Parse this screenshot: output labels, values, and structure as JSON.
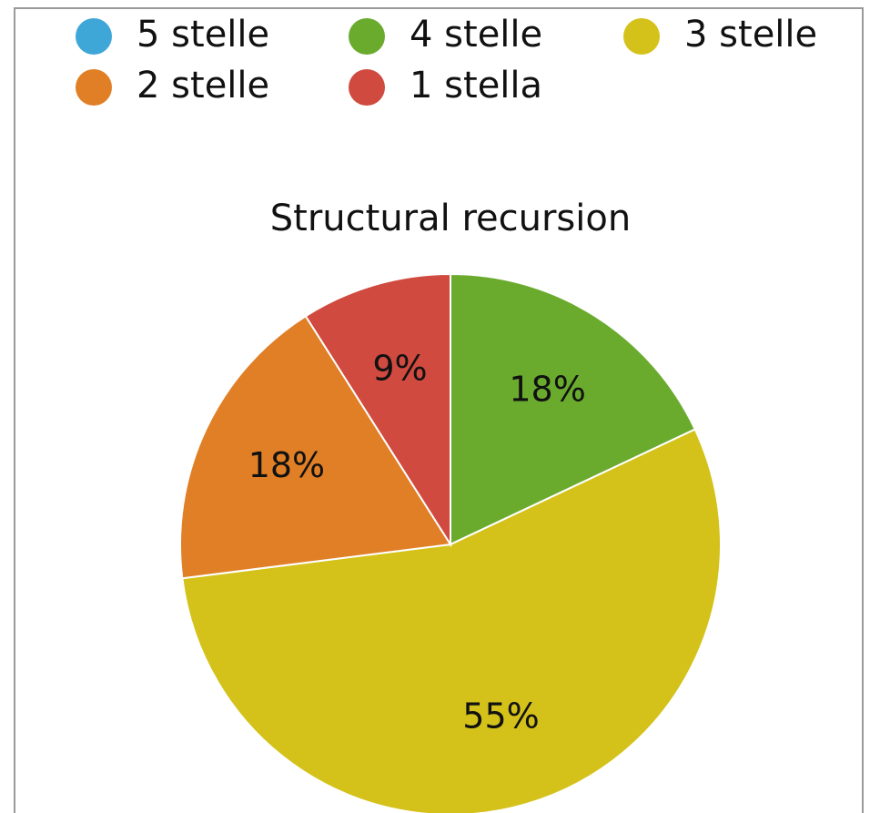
{
  "chart_data": {
    "type": "pie",
    "title": "Structural recursion",
    "categories": [
      "5 stelle",
      "4 stelle",
      "3 stelle",
      "2 stelle",
      "1 stella"
    ],
    "values": [
      0,
      18,
      55,
      18,
      9
    ],
    "value_labels": [
      null,
      "18%",
      "55%",
      "18%",
      "9%"
    ],
    "colors": [
      "#3ea7d8",
      "#6aab2e",
      "#d4c21a",
      "#e07f26",
      "#d04a3f"
    ]
  }
}
